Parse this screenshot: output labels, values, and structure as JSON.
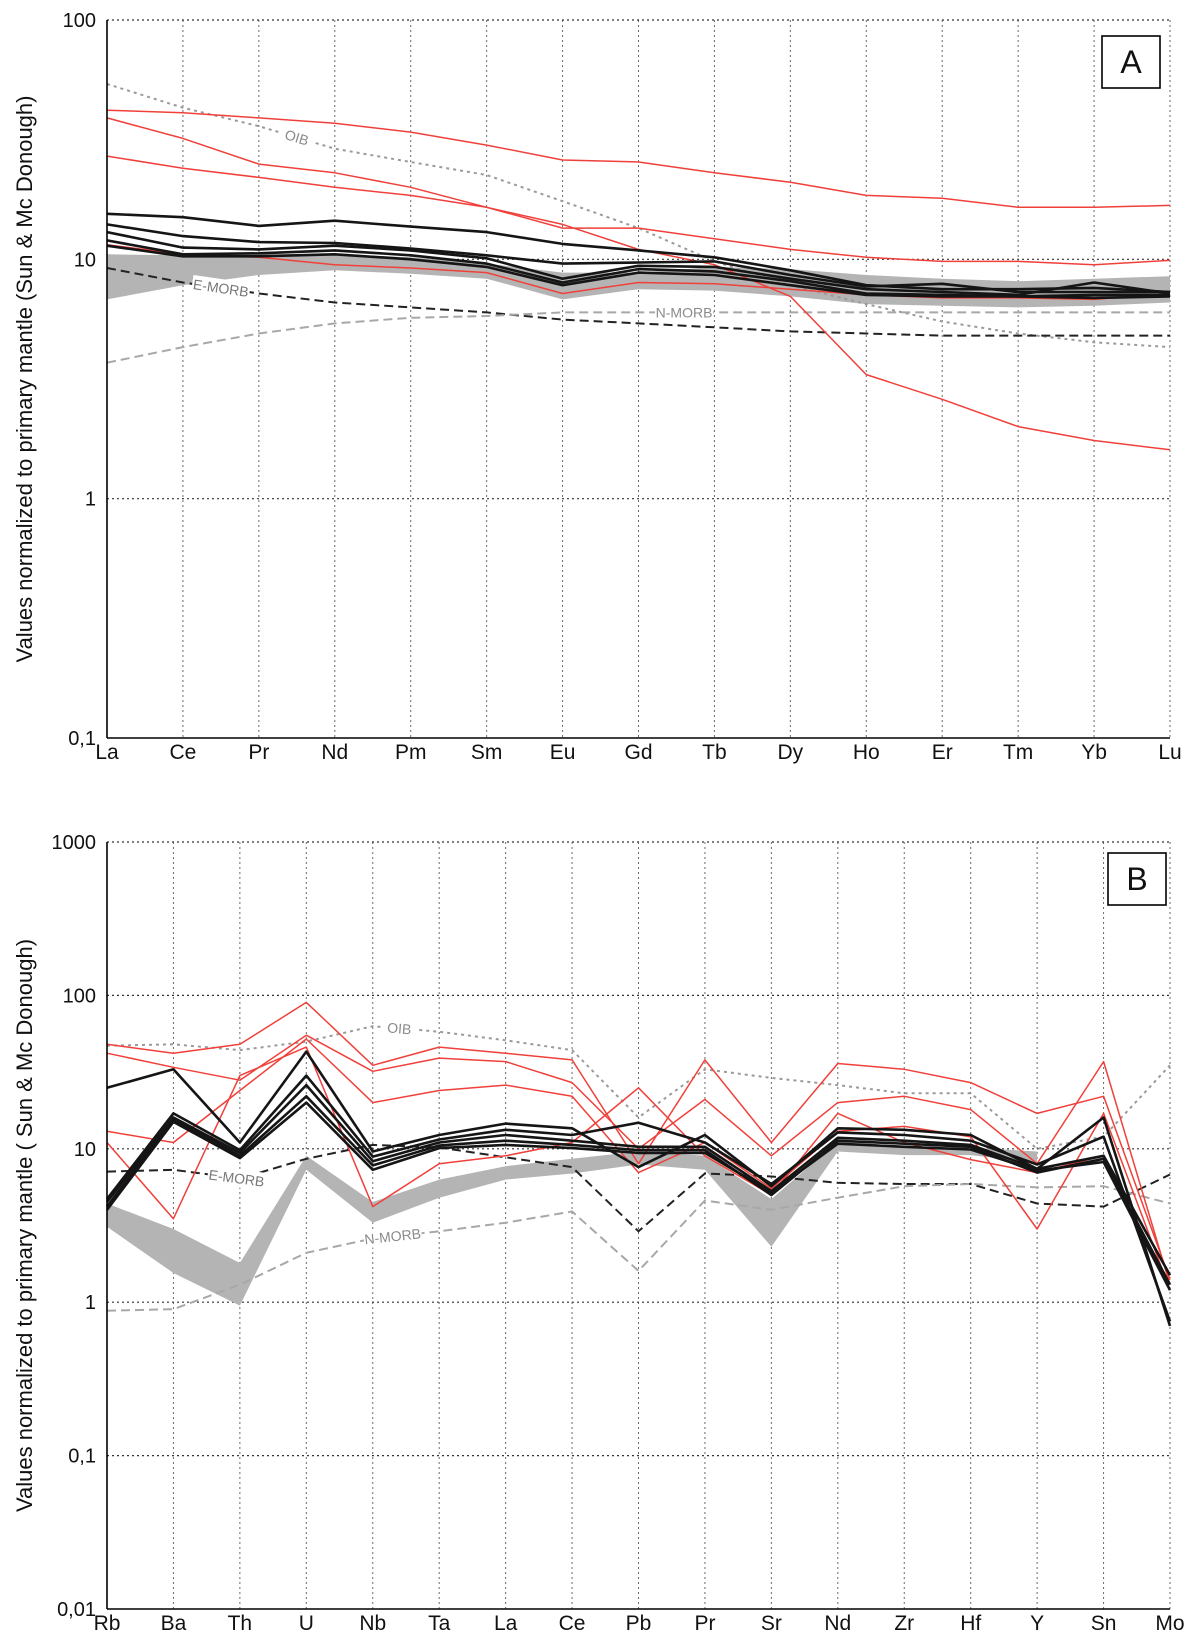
{
  "chart_data": [
    {
      "panel": "A",
      "type": "line",
      "ylabel": "Values normalized to primary mantle (Sun & Mc Donough)",
      "yscale": "log",
      "ylim": [
        0.1,
        100
      ],
      "yticks": [
        {
          "v": 100,
          "label": "100"
        },
        {
          "v": 10,
          "label": "10"
        },
        {
          "v": 1,
          "label": "1"
        },
        {
          "v": 0.1,
          "label": "0,1"
        }
      ],
      "categories": [
        "La",
        "Ce",
        "Pr",
        "Nd",
        "Pm",
        "Sm",
        "Eu",
        "Gd",
        "Tb",
        "Dy",
        "Ho",
        "Er",
        "Tm",
        "Yb",
        "Lu"
      ],
      "colors": {
        "red": "#f0403a",
        "black": "#151515",
        "ref_black": "#222222",
        "ref_gray": "#9a9a9a",
        "band": "#b4b4b4"
      },
      "band": {
        "upper": [
          10.5,
          10.4,
          10.5,
          10.5,
          10.2,
          9.6,
          8.8,
          8.8,
          9.3,
          9.1,
          8.6,
          8.3,
          8.1,
          8.3,
          8.5
        ],
        "lower": [
          6.8,
          7.8,
          8.6,
          9.0,
          8.7,
          8.3,
          6.8,
          7.5,
          7.4,
          7.0,
          6.5,
          6.4,
          6.3,
          6.4,
          6.6
        ]
      },
      "series": [
        {
          "name": "red-1",
          "group": "red",
          "values": [
            42,
            41,
            39,
            37,
            34,
            30,
            26,
            25.5,
            23,
            21,
            18.5,
            18,
            16.5,
            16.5,
            16.8
          ]
        },
        {
          "name": "red-2",
          "group": "red",
          "values": [
            39,
            32,
            25,
            23,
            20,
            16.5,
            14,
            11,
            9.5,
            7.0,
            3.3,
            2.6,
            2.0,
            1.75,
            1.6
          ]
        },
        {
          "name": "red-3",
          "group": "red",
          "values": [
            27,
            24,
            22,
            20,
            18.5,
            16.5,
            13.5,
            13.5,
            12.2,
            11,
            10.2,
            9.8,
            9.8,
            9.5,
            9.9
          ]
        },
        {
          "name": "red-4",
          "group": "red",
          "values": [
            11.5,
            10.5,
            10.2,
            9.5,
            9.2,
            8.8,
            7.2,
            8.0,
            7.9,
            7.5,
            7.1,
            6.9,
            6.9,
            6.8,
            7.2
          ]
        },
        {
          "name": "black-1",
          "group": "black",
          "values": [
            15.5,
            15,
            13.8,
            14.5,
            13.7,
            13,
            11.6,
            10.9,
            10.2,
            9.0,
            7.8,
            7.5,
            7.5,
            7.6,
            7.3
          ]
        },
        {
          "name": "black-2",
          "group": "black",
          "values": [
            14,
            12.5,
            11.8,
            11.7,
            11.1,
            10.4,
            9.6,
            9.7,
            9.8,
            8.6,
            7.7,
            7.9,
            7.3,
            7.3,
            7.3
          ]
        },
        {
          "name": "black-3",
          "group": "black",
          "values": [
            13,
            11.2,
            11.0,
            11.4,
            10.9,
            10.1,
            8.3,
            9.4,
            9.3,
            8.3,
            7.5,
            7.3,
            7.1,
            8.0,
            7.2
          ]
        },
        {
          "name": "black-4",
          "group": "black",
          "values": [
            12,
            10.5,
            10.6,
            10.9,
            10.4,
            9.6,
            8.0,
            9.1,
            8.9,
            8.1,
            7.2,
            7.1,
            7.0,
            7.1,
            7.1
          ]
        },
        {
          "name": "black-5",
          "group": "black",
          "values": [
            11.4,
            10.3,
            10.3,
            10.5,
            10.0,
            9.3,
            7.8,
            8.8,
            8.6,
            7.8,
            7.1,
            7.0,
            7.0,
            6.9,
            7.0
          ]
        }
      ],
      "references": [
        {
          "name": "OIB",
          "label": "OIB",
          "style": "dotted-gray",
          "label_at": 2.5,
          "values": [
            54,
            43,
            36,
            29,
            25.5,
            22.5,
            17.5,
            13.5,
            9.8,
            7.8,
            6.5,
            5.5,
            4.9,
            4.5,
            4.3
          ]
        },
        {
          "name": "E-MORB",
          "label": "E-MORB",
          "style": "dashed-black",
          "label_at": 1.5,
          "values": [
            9.2,
            8.0,
            7.2,
            6.6,
            6.3,
            6.0,
            5.6,
            5.4,
            5.2,
            5.0,
            4.9,
            4.8,
            4.8,
            4.8,
            4.8
          ]
        },
        {
          "name": "N-MORB",
          "label": "N-MORB",
          "style": "dashed-gray",
          "label_at": 7.6,
          "values": [
            3.7,
            4.3,
            4.9,
            5.4,
            5.7,
            5.8,
            6.0,
            6.0,
            6.0,
            6.0,
            6.0,
            6.0,
            6.0,
            6.0,
            6.0
          ]
        }
      ]
    },
    {
      "panel": "B",
      "type": "line",
      "ylabel": "Values normalized to primary mantle ( Sun & Mc Donough)",
      "yscale": "log",
      "ylim": [
        0.01,
        1000
      ],
      "yticks": [
        {
          "v": 1000,
          "label": "1000"
        },
        {
          "v": 100,
          "label": "100"
        },
        {
          "v": 10,
          "label": "10"
        },
        {
          "v": 1,
          "label": "1"
        },
        {
          "v": 0.1,
          "label": "0,1"
        },
        {
          "v": 0.01,
          "label": "0,01"
        }
      ],
      "categories": [
        "Rb",
        "Ba",
        "Th",
        "U",
        "Nb",
        "Ta",
        "La",
        "Ce",
        "Pb",
        "Pr",
        "Sr",
        "Nd",
        "Zr",
        "Hf",
        "Y",
        "Sn",
        "Mo"
      ],
      "colors": {
        "red": "#f0403a",
        "black": "#151515",
        "ref_black": "#222222",
        "ref_gray": "#9a9a9a",
        "band": "#b4b4b4"
      },
      "band": {
        "upper": [
          4.4,
          3.0,
          1.8,
          9.0,
          4.5,
          6.3,
          7.7,
          8.6,
          9.6,
          9.0,
          4.7,
          11.2,
          10.4,
          10.2,
          9.6,
          null,
          null
        ],
        "lower": [
          3.1,
          1.55,
          0.95,
          7.3,
          3.3,
          4.8,
          6.3,
          6.9,
          7.9,
          7.3,
          2.3,
          9.6,
          9.1,
          9.1,
          8.1,
          null,
          null
        ]
      },
      "series": [
        {
          "name": "red-1",
          "group": "red",
          "values": [
            48,
            42,
            48,
            90,
            35,
            46,
            42,
            38,
            8,
            38,
            11,
            36,
            33,
            27,
            17,
            22,
            1.4
          ]
        },
        {
          "name": "red-2",
          "group": "red",
          "values": [
            42,
            34,
            28,
            55,
            32,
            39,
            37,
            27,
            10,
            21,
            9,
            20,
            22,
            18,
            8,
            37,
            1.3
          ]
        },
        {
          "name": "red-3",
          "group": "red",
          "values": [
            13,
            11,
            24,
            52,
            20,
            24,
            26,
            22,
            7,
            11,
            5.5,
            13,
            14,
            12,
            3.0,
            17,
            1.2
          ]
        },
        {
          "name": "red-4",
          "group": "red",
          "values": [
            11,
            3.5,
            30,
            46,
            4.2,
            8,
            9,
            11,
            25,
            9,
            5,
            17,
            11,
            8.5,
            7,
            9,
            1.2
          ]
        },
        {
          "name": "black-1",
          "group": "black",
          "values": [
            25,
            33,
            11,
            43,
            9.6,
            12.3,
            14.6,
            13.6,
            7.6,
            12.3,
            5.7,
            13.6,
            13.3,
            12.3,
            7.4,
            16,
            0.7
          ]
        },
        {
          "name": "black-2",
          "group": "black",
          "values": [
            4.7,
            17,
            9.8,
            30,
            8.9,
            11.5,
            13.3,
            12.3,
            14.8,
            11,
            5.9,
            12.8,
            12.3,
            11.3,
            7.9,
            12,
            0.75
          ]
        },
        {
          "name": "black-3",
          "group": "black",
          "values": [
            4.5,
            16,
            9.4,
            26,
            8.3,
            11,
            12.3,
            11.3,
            10.3,
            10.3,
            5.3,
            11.8,
            11.3,
            10.6,
            7.4,
            9,
            1.5
          ]
        },
        {
          "name": "black-4",
          "group": "black",
          "values": [
            4.2,
            15.5,
            9,
            22,
            7.8,
            10.5,
            11.3,
            10.6,
            9.8,
            9.8,
            5.0,
            11.3,
            10.8,
            10.3,
            7.0,
            8.6,
            1.3
          ]
        },
        {
          "name": "black-5",
          "group": "black",
          "values": [
            4.0,
            15,
            8.7,
            20,
            7.3,
            10.1,
            10.6,
            10.1,
            9.4,
            9.4,
            5.2,
            10.8,
            10.3,
            9.9,
            7.2,
            8.2,
            1.2
          ]
        }
      ],
      "references": [
        {
          "name": "OIB",
          "label": "OIB",
          "style": "dotted-gray",
          "label_at": 4.4,
          "values": [
            47,
            48,
            44,
            50,
            63,
            58,
            51,
            44,
            16,
            33,
            29,
            26,
            23,
            23,
            10,
            12,
            35
          ]
        },
        {
          "name": "E-MORB",
          "label": "E-MORB",
          "style": "dashed-black",
          "label_at": 1.95,
          "values": [
            7.1,
            7.3,
            6.4,
            8.6,
            10.6,
            10.2,
            8.8,
            7.6,
            2.9,
            6.9,
            6.6,
            6.0,
            5.9,
            5.9,
            4.4,
            4.2,
            6.8
          ]
        },
        {
          "name": "N-MORB",
          "label": "N-MORB",
          "style": "dashed-gray",
          "label_at": 4.3,
          "values": [
            0.88,
            0.9,
            1.3,
            2.1,
            2.6,
            2.9,
            3.3,
            3.9,
            1.6,
            4.6,
            4.0,
            4.8,
            5.7,
            5.9,
            5.6,
            5.7,
            4.4
          ]
        }
      ]
    }
  ]
}
